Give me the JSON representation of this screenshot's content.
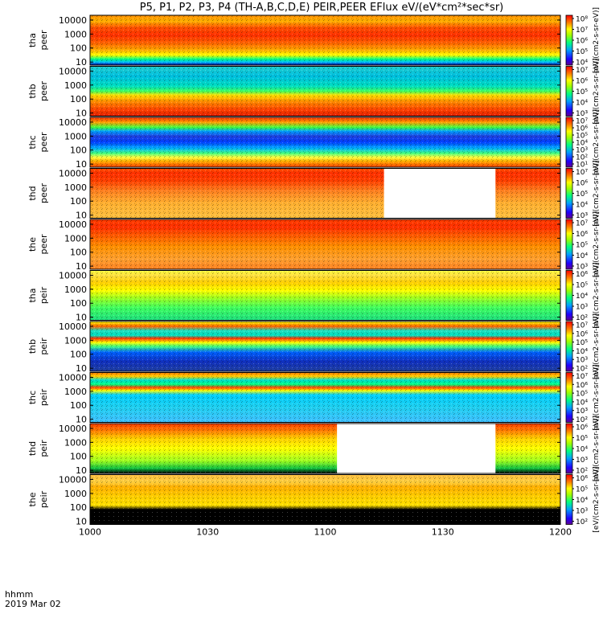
{
  "title": "P5, P1, P2, P3, P4 (TH-A,B,C,D,E) PEIR,PEER EFlux eV/(eV*cm²*sec*sr)",
  "chart_data": {
    "type": "heatmap",
    "x_label_line1": "hhmm",
    "x_label_line2": "2019 Mar 02",
    "x_ticks": [
      "1000",
      "1030",
      "1100",
      "1130",
      "1200"
    ],
    "x_range": [
      "1000",
      "1200"
    ],
    "y_ticks": [
      "10",
      "100",
      "1000",
      "10000"
    ],
    "y_scale": "log",
    "colorbar_label": "[eV/(cm2-s-sr-eV)]",
    "panels": [
      {
        "probe": "tha",
        "species": "peer",
        "data_gap_pct": null,
        "cbar_ticks": [
          "10⁴",
          "10⁵",
          "10⁶",
          "10⁷",
          "10⁸"
        ],
        "profile": [
          [
            0,
            "#0000a0"
          ],
          [
            0.06,
            "#00c0ff"
          ],
          [
            0.12,
            "#00ff80"
          ],
          [
            0.2,
            "#ffff00"
          ],
          [
            0.32,
            "#ffa000"
          ],
          [
            0.45,
            "#ff6000"
          ],
          [
            0.6,
            "#ff3000"
          ],
          [
            0.75,
            "#ff5000"
          ],
          [
            0.88,
            "#ffb000"
          ],
          [
            1,
            "#ff9000"
          ]
        ]
      },
      {
        "probe": "thb",
        "species": "peer",
        "data_gap_pct": null,
        "cbar_ticks": [
          "10³",
          "10⁴",
          "10⁵",
          "10⁶",
          "10⁷"
        ],
        "profile": [
          [
            0,
            "#e02000"
          ],
          [
            0.12,
            "#ff4000"
          ],
          [
            0.3,
            "#ff9000"
          ],
          [
            0.42,
            "#ffe000"
          ],
          [
            0.5,
            "#40ff60"
          ],
          [
            0.6,
            "#00e0c0"
          ],
          [
            0.8,
            "#00c0e0"
          ],
          [
            1,
            "#20d0d0"
          ]
        ]
      },
      {
        "probe": "thc",
        "species": "peer",
        "data_gap_pct": null,
        "cbar_ticks": [
          "10¹",
          "10²",
          "10³",
          "10⁴",
          "10⁵",
          "10⁶",
          "10⁷"
        ],
        "profile": [
          [
            0,
            "#ff4000"
          ],
          [
            0.12,
            "#ffb000"
          ],
          [
            0.2,
            "#ffff40"
          ],
          [
            0.28,
            "#40ff80"
          ],
          [
            0.38,
            "#00b0ff"
          ],
          [
            0.5,
            "#0040ff"
          ],
          [
            0.62,
            "#2040e0"
          ],
          [
            0.72,
            "#00a0ff"
          ],
          [
            0.8,
            "#40ff40"
          ],
          [
            0.9,
            "#ffa000"
          ],
          [
            1,
            "#ff3000"
          ]
        ]
      },
      {
        "probe": "thd",
        "species": "peer",
        "data_gap_pct": [
          62.5,
          86.2
        ],
        "cbar_ticks": [
          "10³",
          "10⁴",
          "10⁵",
          "10⁶",
          "10⁷"
        ],
        "profile": [
          [
            0,
            "#ffc040"
          ],
          [
            0.3,
            "#ffb030"
          ],
          [
            0.55,
            "#ff8020"
          ],
          [
            0.75,
            "#ff4000"
          ],
          [
            0.9,
            "#ff3000"
          ],
          [
            1,
            "#ff5000"
          ]
        ]
      },
      {
        "probe": "the",
        "species": "peer",
        "data_gap_pct": null,
        "cbar_ticks": [
          "10³",
          "10⁴",
          "10⁵",
          "10⁶",
          "10⁷"
        ],
        "profile": [
          [
            0,
            "#ff8020"
          ],
          [
            0.2,
            "#ffa030"
          ],
          [
            0.45,
            "#ff9000"
          ],
          [
            0.65,
            "#ff6000"
          ],
          [
            0.85,
            "#ff3000"
          ],
          [
            1,
            "#ff4000"
          ]
        ]
      },
      {
        "probe": "tha",
        "species": "peir",
        "data_gap_pct": null,
        "cbar_ticks": [
          "10²",
          "10³",
          "10⁴",
          "10⁵",
          "10⁶"
        ],
        "profile": [
          [
            0,
            "#20e080"
          ],
          [
            0.25,
            "#40ff60"
          ],
          [
            0.45,
            "#a0ff20"
          ],
          [
            0.6,
            "#ffff00"
          ],
          [
            0.75,
            "#ffd000"
          ],
          [
            0.9,
            "#ffe040"
          ],
          [
            1,
            "#ffff40"
          ]
        ]
      },
      {
        "probe": "thb",
        "species": "peir",
        "data_gap_pct": null,
        "cbar_ticks": [
          "10²",
          "10³",
          "10⁴",
          "10⁵",
          "10⁶",
          "10⁷"
        ],
        "profile": [
          [
            0,
            "#2040a0"
          ],
          [
            0.2,
            "#1030c0"
          ],
          [
            0.38,
            "#0060ff"
          ],
          [
            0.5,
            "#40ff80"
          ],
          [
            0.58,
            "#ffff00"
          ],
          [
            0.66,
            "#ff3000"
          ],
          [
            0.72,
            "#00e0c0"
          ],
          [
            0.82,
            "#20e0c0"
          ],
          [
            0.9,
            "#ff6000"
          ],
          [
            1,
            "#ffff00"
          ]
        ]
      },
      {
        "probe": "thc",
        "species": "peir",
        "data_gap_pct": null,
        "cbar_ticks": [
          "10²",
          "10³",
          "10⁴",
          "10⁵",
          "10⁶",
          "10⁷"
        ],
        "profile": [
          [
            0,
            "#40c0ff"
          ],
          [
            0.3,
            "#20d0f0"
          ],
          [
            0.55,
            "#00d0ff"
          ],
          [
            0.64,
            "#ffff00"
          ],
          [
            0.7,
            "#ff4000"
          ],
          [
            0.76,
            "#00ff80"
          ],
          [
            0.85,
            "#00e0d0"
          ],
          [
            0.92,
            "#ffd000"
          ],
          [
            1,
            "#ff8000"
          ]
        ]
      },
      {
        "probe": "thd",
        "species": "peir",
        "data_gap_pct": [
          52.5,
          86.2
        ],
        "cbar_ticks": [
          "10²",
          "10³",
          "10⁴",
          "10⁵",
          "10⁶"
        ],
        "profile": [
          [
            0,
            "#000000"
          ],
          [
            0.1,
            "#10c040"
          ],
          [
            0.25,
            "#a0ff20"
          ],
          [
            0.5,
            "#ffff00"
          ],
          [
            0.7,
            "#ffd000"
          ],
          [
            0.85,
            "#ff8000"
          ],
          [
            1,
            "#ff4000"
          ]
        ]
      },
      {
        "probe": "the",
        "species": "peir",
        "data_gap_pct": null,
        "cbar_ticks": [
          "10²",
          "10³",
          "10⁴",
          "10⁵",
          "10⁶"
        ],
        "profile": [
          [
            0,
            "#000000"
          ],
          [
            0.3,
            "#000000"
          ],
          [
            0.38,
            "#ffe000"
          ],
          [
            0.55,
            "#ffd000"
          ],
          [
            0.75,
            "#ffb000"
          ],
          [
            0.85,
            "#ffd040"
          ],
          [
            1,
            "#ffc040"
          ]
        ]
      }
    ]
  }
}
